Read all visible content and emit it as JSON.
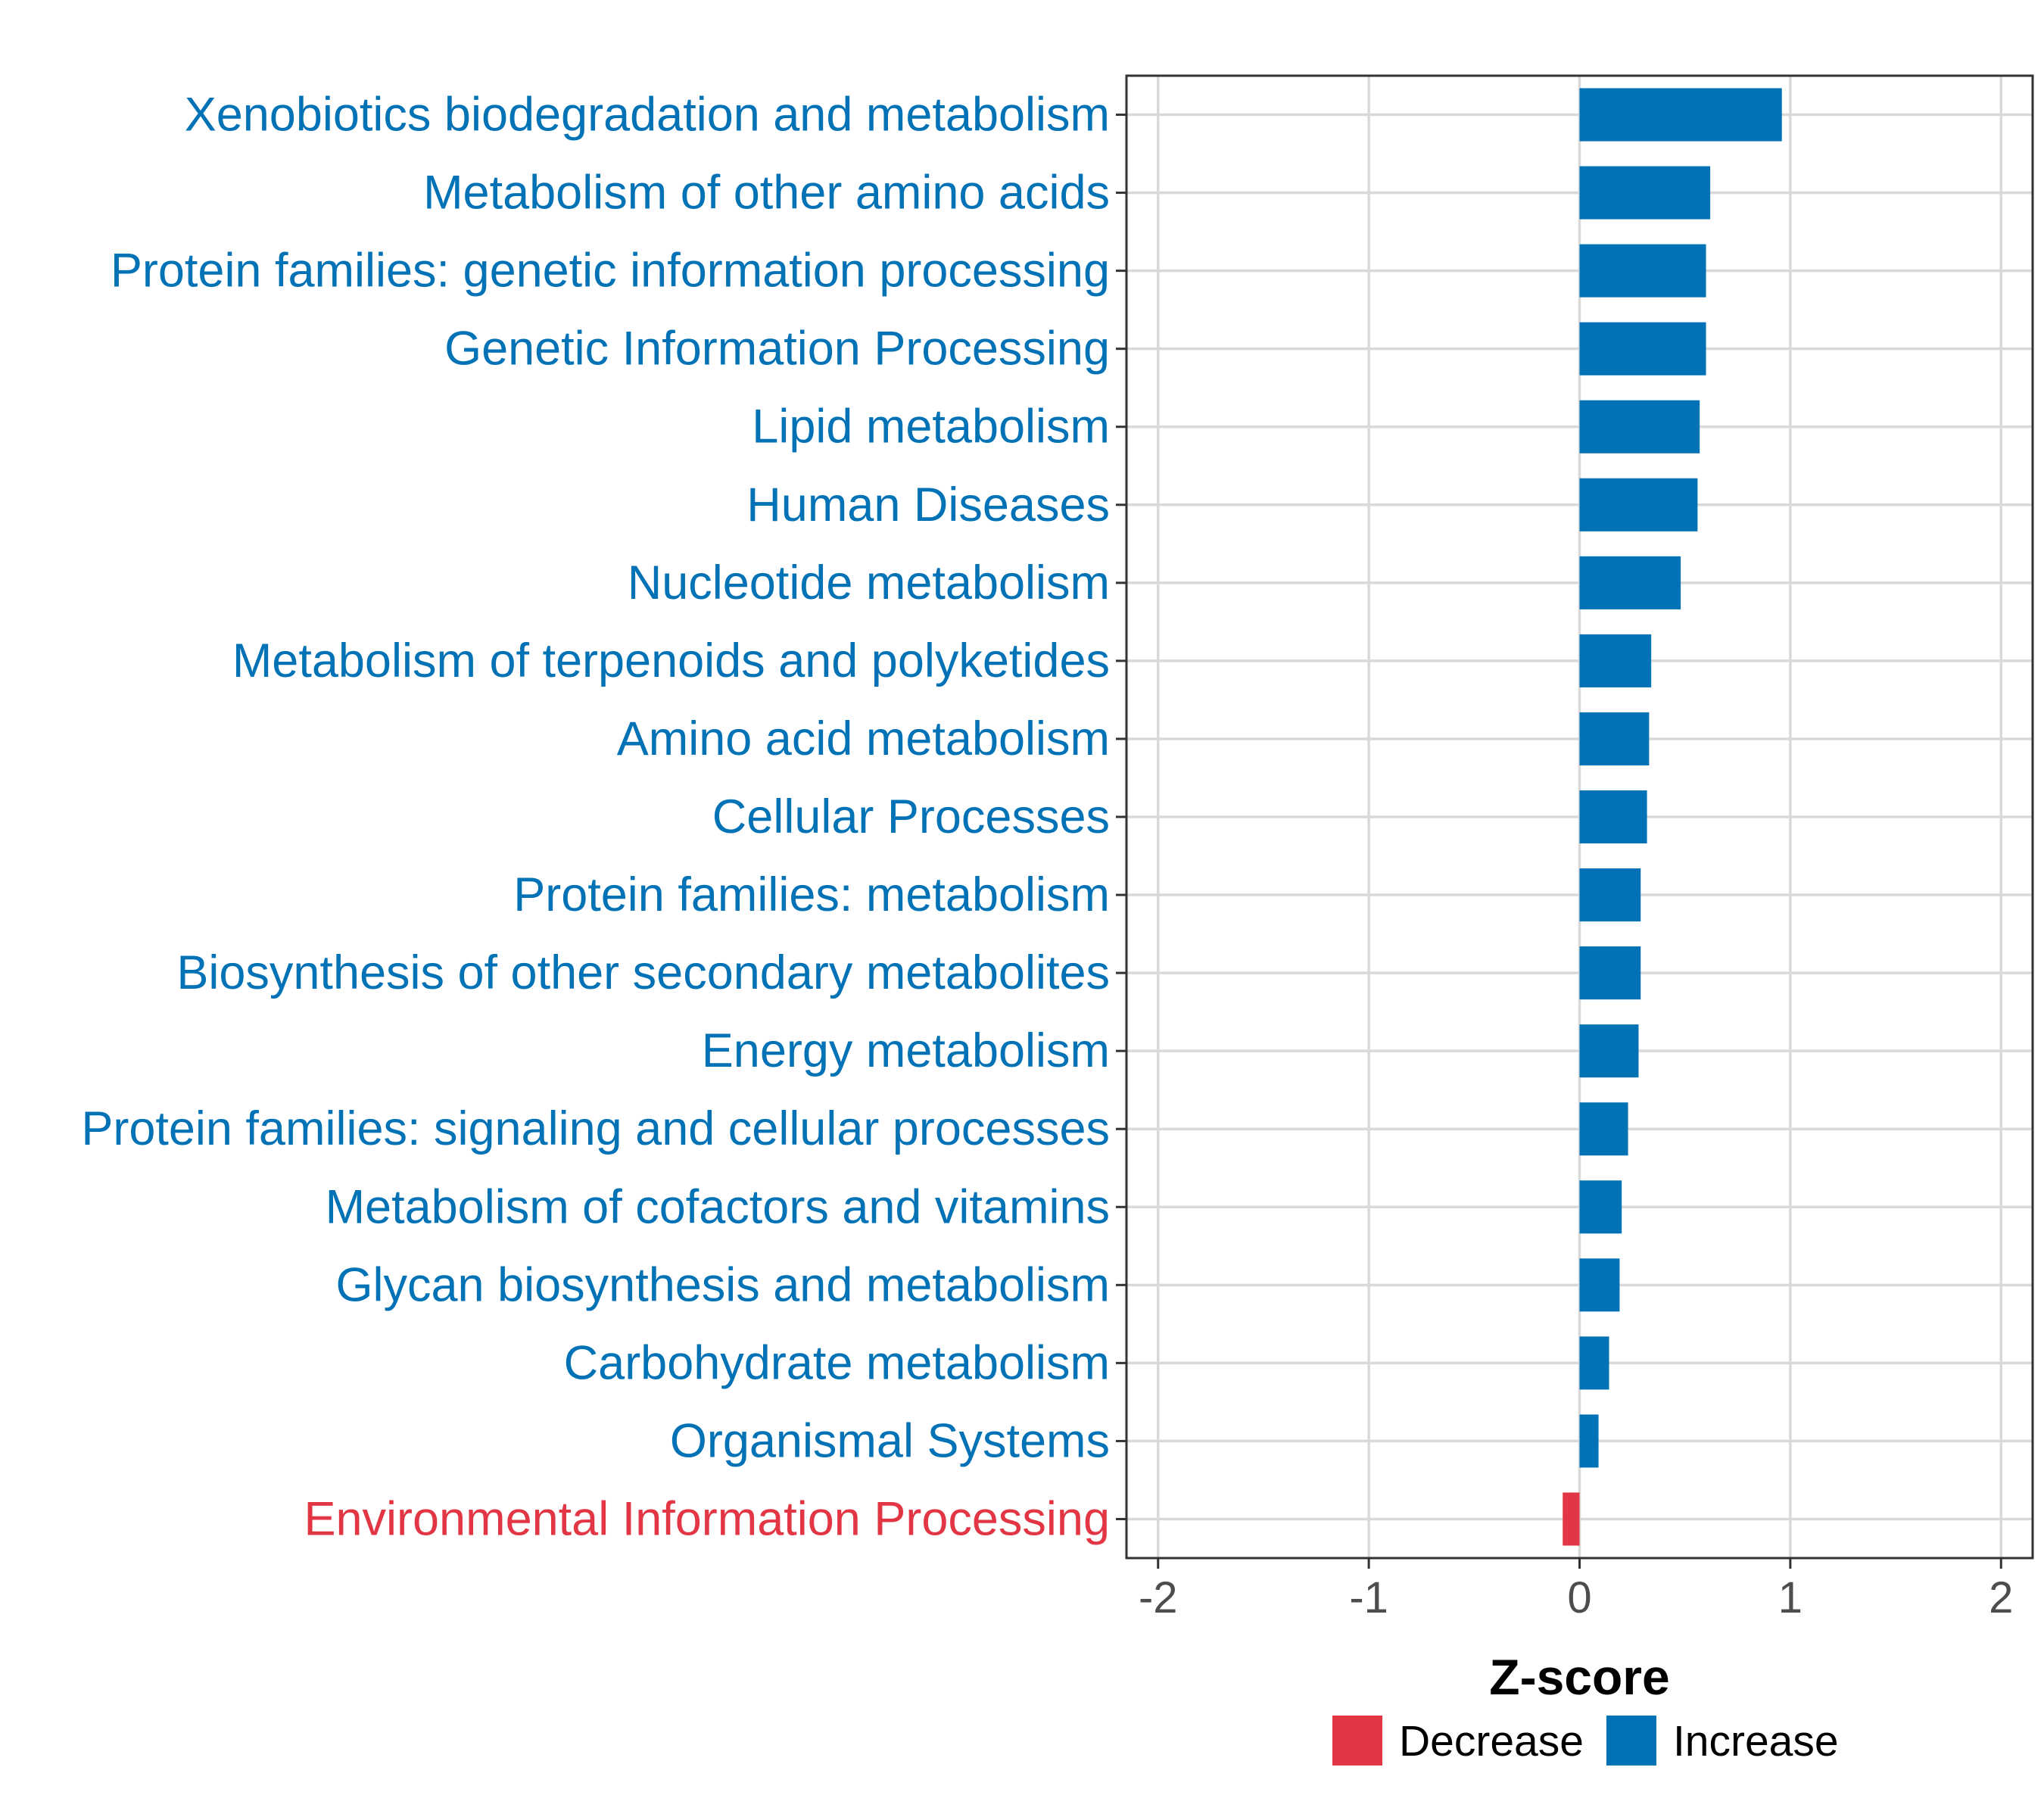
{
  "chart_data": {
    "type": "bar",
    "orientation": "horizontal",
    "xlabel": "Z-score",
    "xlim": [
      -2.15,
      2.15
    ],
    "xticks": [
      -2,
      -1,
      0,
      1,
      2
    ],
    "xtick_labels": [
      "-2",
      "-1",
      "0",
      "1",
      "2"
    ],
    "grid": true,
    "legend_position": "bottom",
    "colors": {
      "Decrease": "#E23645",
      "Increase": "#0072B5"
    },
    "legend": [
      {
        "label": "Decrease",
        "color": "#E23645"
      },
      {
        "label": "Increase",
        "color": "#0072B5"
      }
    ],
    "categories": [
      "Xenobiotics biodegradation and metabolism",
      "Metabolism of other amino acids",
      "Protein families: genetic information processing",
      "Genetic Information Processing",
      "Lipid metabolism",
      "Human Diseases",
      "Nucleotide metabolism",
      "Metabolism of terpenoids and polyketides",
      "Amino acid metabolism",
      "Cellular Processes",
      "Protein families: metabolism",
      "Biosynthesis of other secondary metabolites",
      "Energy metabolism",
      "Protein families: signaling and cellular processes",
      "Metabolism of cofactors and vitamins",
      "Glycan biosynthesis and metabolism",
      "Carbohydrate metabolism",
      "Organismal Systems",
      "Environmental Information Processing"
    ],
    "values": [
      0.96,
      0.62,
      0.6,
      0.6,
      0.57,
      0.56,
      0.48,
      0.34,
      0.33,
      0.32,
      0.29,
      0.29,
      0.28,
      0.23,
      0.2,
      0.19,
      0.14,
      0.09,
      -0.08
    ],
    "groups": [
      "Increase",
      "Increase",
      "Increase",
      "Increase",
      "Increase",
      "Increase",
      "Increase",
      "Increase",
      "Increase",
      "Increase",
      "Increase",
      "Increase",
      "Increase",
      "Increase",
      "Increase",
      "Increase",
      "Increase",
      "Increase",
      "Decrease"
    ]
  }
}
